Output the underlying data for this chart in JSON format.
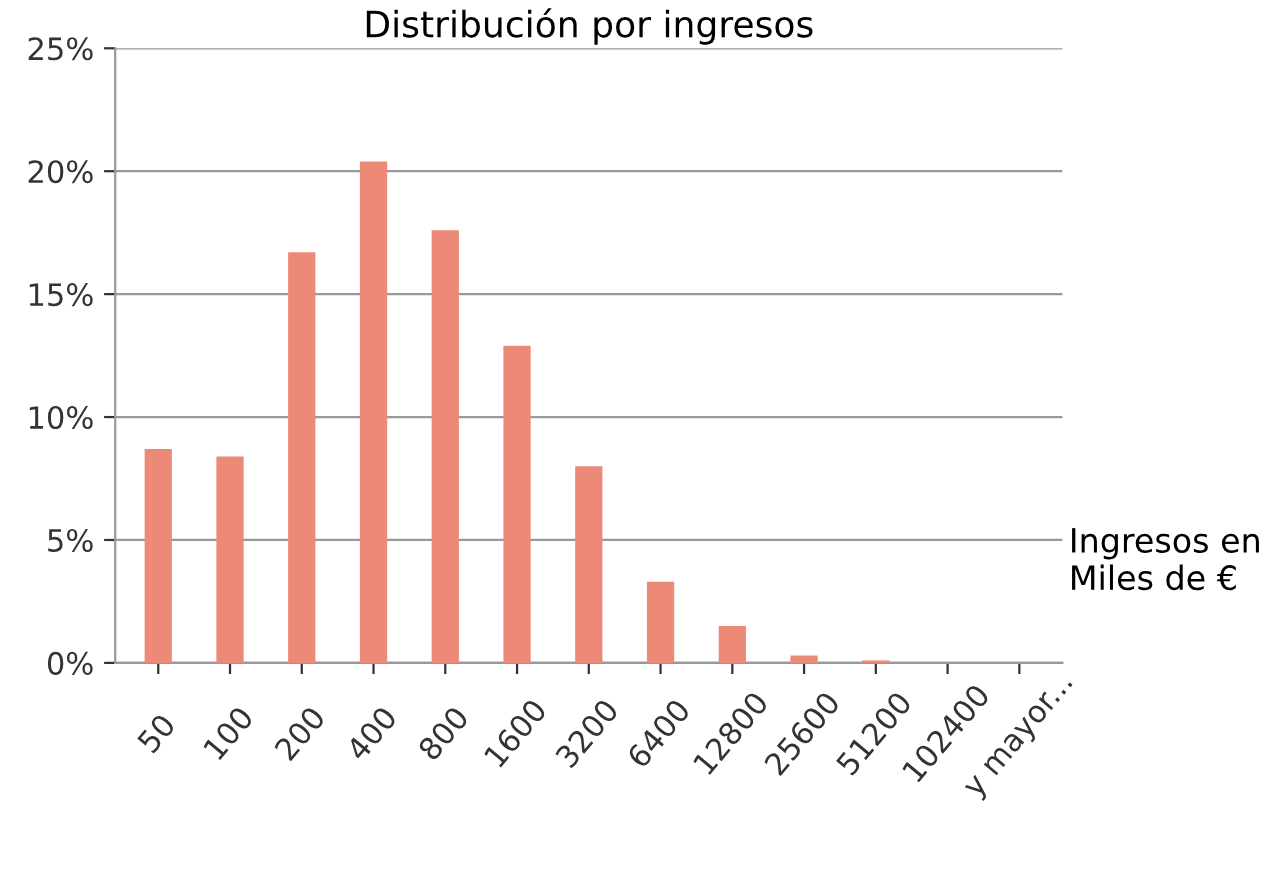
{
  "chart_data": {
    "type": "bar",
    "title": "Distribución por ingresos",
    "xlabel": "Ingresos en\nMiles de €",
    "categories": [
      "50",
      "100",
      "200",
      "400",
      "800",
      "1600",
      "3200",
      "6400",
      "12800",
      "25600",
      "51200",
      "102400",
      "y mayor..."
    ],
    "values": [
      8.7,
      8.4,
      16.7,
      20.4,
      17.6,
      12.9,
      8.0,
      3.3,
      1.5,
      0.3,
      0.1,
      0,
      0
    ],
    "color": "#ec8a77",
    "ylim": [
      0,
      25
    ],
    "yticks": [
      {
        "value": 0,
        "label": "0%"
      },
      {
        "value": 5,
        "label": "5%"
      },
      {
        "value": 10,
        "label": "10%"
      },
      {
        "value": 15,
        "label": "15%"
      },
      {
        "value": 20,
        "label": "20%"
      },
      {
        "value": 25,
        "label": "25%"
      }
    ],
    "grid": "y"
  }
}
